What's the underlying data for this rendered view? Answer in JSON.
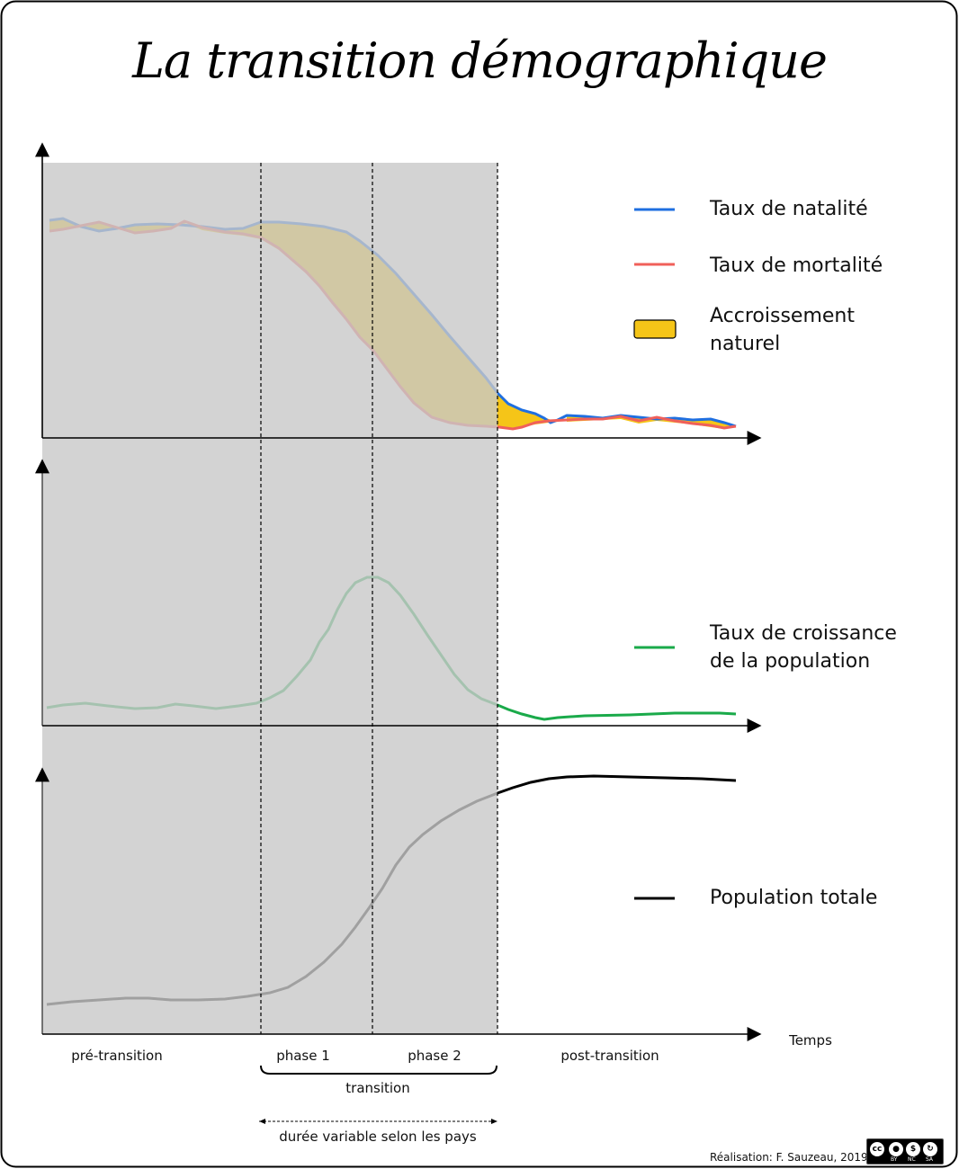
{
  "title": "La transition démographique",
  "colors": {
    "birth": "#1f6fe0",
    "death": "#f0605a",
    "growth_rate": "#1aaa4a",
    "population": "#000000",
    "natural_increase": "#f5c518",
    "transition_zone": "#c8c8c8"
  },
  "legend": {
    "birth_rate": "Taux de natalité",
    "death_rate": "Taux de mortalité",
    "natural_increase": [
      "Accroissement",
      "naturel"
    ],
    "growth_rate": [
      "Taux de croissance",
      "de la population"
    ],
    "total_population": "Population totale"
  },
  "axis": {
    "time_label": "Temps"
  },
  "phases": {
    "pre": "pré-transition",
    "phase1": "phase 1",
    "phase2": "phase 2",
    "post": "post-transition",
    "transition": "transition",
    "duration_note": "durée variable selon les pays"
  },
  "credit": "Réalisation: F. Sauzeau, 2019",
  "license_badge": {
    "letters": [
      "cc",
      "BY",
      "NC",
      "SA"
    ]
  }
}
